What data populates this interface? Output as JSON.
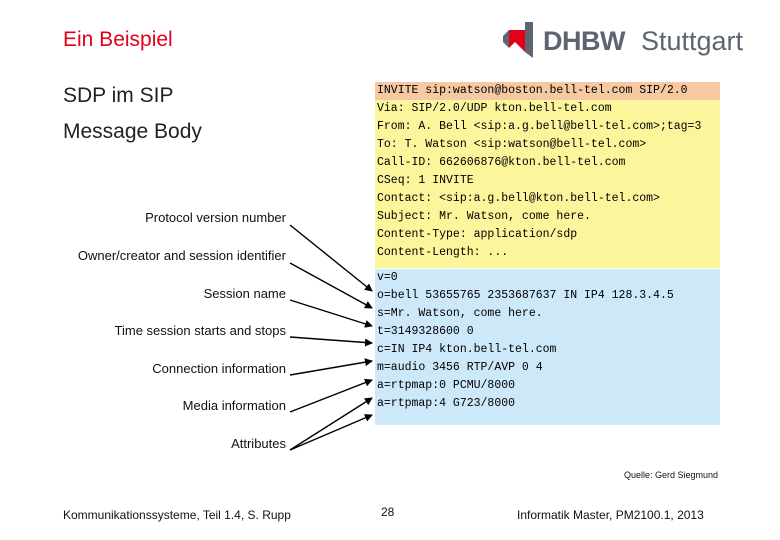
{
  "title": "Ein Beispiel",
  "logo": {
    "brand": "DHBW",
    "city": "Stuttgart",
    "colors": {
      "mark": "#e2001a",
      "text": "#5c6670"
    }
  },
  "subtitle": {
    "line1": "SDP im SIP",
    "line2": "Message Body"
  },
  "labels": [
    "Protocol version number",
    "Owner/creator and session identifier",
    "Session name",
    "Time session starts and stops",
    "Connection information",
    "Media information",
    "Attributes"
  ],
  "sip_header": [
    "INVITE sip:watson@boston.bell-tel.com SIP/2.0",
    "Via: SIP/2.0/UDP kton.bell-tel.com",
    "From: A. Bell <sip:a.g.bell@bell-tel.com>;tag=3",
    "To: T. Watson <sip:watson@bell-tel.com>",
    "Call-ID: 662606876@kton.bell-tel.com",
    "CSeq: 1 INVITE",
    "Contact: <sip:a.g.bell@kton.bell-tel.com>",
    "Subject: Mr. Watson, come here.",
    "Content-Type: application/sdp",
    "Content-Length: ..."
  ],
  "sdp_body": [
    "v=0",
    "o=bell 53655765 2353687637 IN IP4 128.3.4.5",
    "s=Mr. Watson, come here.",
    "t=3149328600 0",
    "c=IN IP4 kton.bell-tel.com",
    "m=audio 3456 RTP/AVP 0 4",
    "a=rtpmap:0 PCMU/8000",
    "a=rtpmap:4 G723/8000"
  ],
  "colors": {
    "title": "#e2001a",
    "sip_box": "#fbf59c",
    "sip_first_line": "#f6c9a2",
    "sdp_box": "#cde8f8"
  },
  "source": "Quelle: Gerd Siegmund",
  "footer": {
    "left": "Kommunikationssysteme, Teil 1.4, S. Rupp",
    "page": "28",
    "right": "Informatik Master, PM2100.1, 2013"
  }
}
